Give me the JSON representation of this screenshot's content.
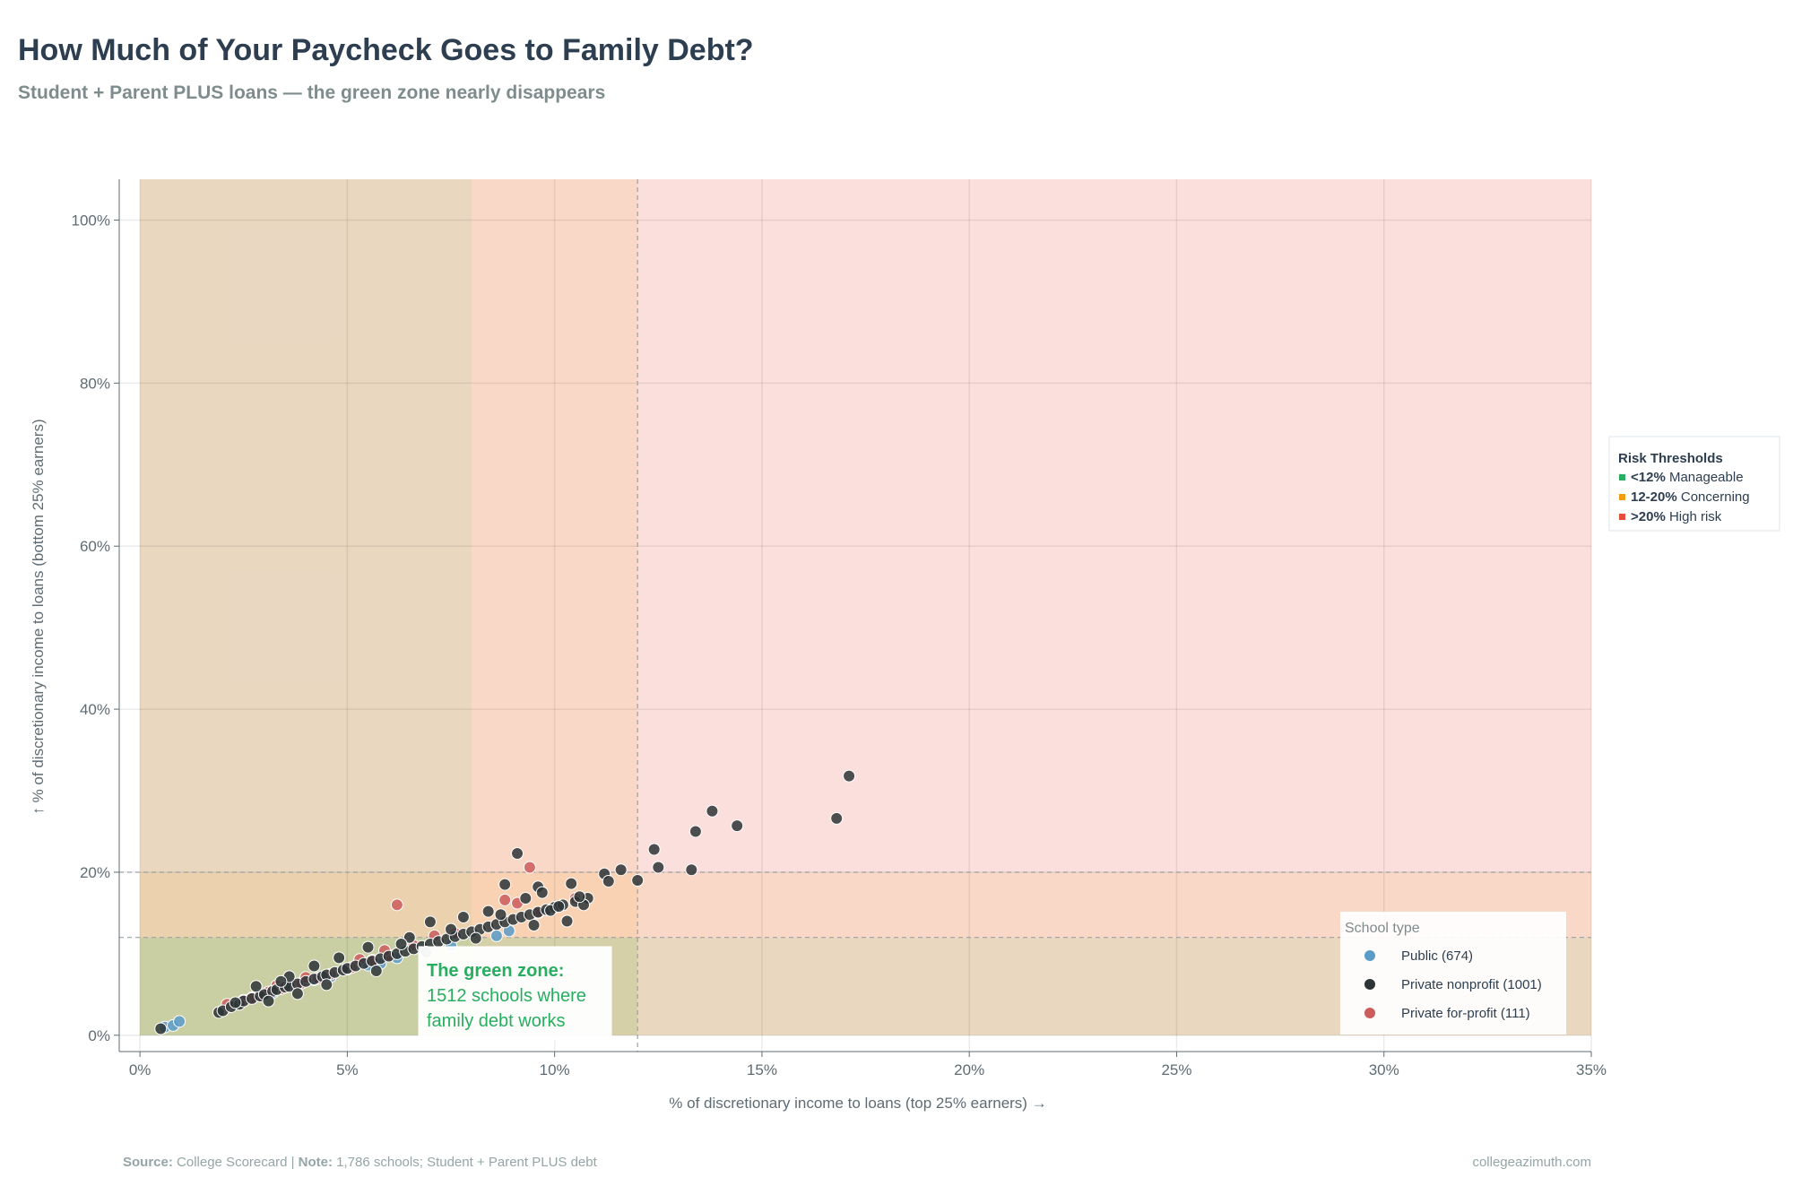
{
  "header": {
    "title": "How Much of Your Paycheck Goes to Family Debt?",
    "subtitle": "Student + Parent PLUS loans — the green zone nearly disappears"
  },
  "footer": {
    "source_label": "Source:",
    "source_text": " College Scorecard | ",
    "note_label": "Note:",
    "note_text": " 1,786 schools; Student + Parent PLUS debt",
    "site": "collegeazimuth.com"
  },
  "annotation": {
    "title": "The green zone:",
    "line1": "1512 schools where",
    "line2": "family debt works"
  },
  "thresholds_legend": {
    "title": "Risk Thresholds",
    "items": [
      {
        "bold": "<12%",
        "text": " Manageable",
        "color": "#27ae60"
      },
      {
        "bold": "12-20%",
        "text": " Concerning",
        "color": "#f39c12"
      },
      {
        "bold": ">20%",
        "text": " High risk",
        "color": "#e74c3c"
      }
    ]
  },
  "colors": {
    "zone_green": "#2ecc71",
    "zone_orange": "#f39c12",
    "zone_red": "#e74c3c",
    "annotation_green": "#27ae60",
    "title": "#2c3e50",
    "subtitle": "#7f8c8d"
  },
  "chart_data": {
    "type": "scatter",
    "xlabel": "% of discretionary income to loans (top 25% earners) →",
    "ylabel": "↑ % of discretionary income to loans (bottom 25% earners)",
    "xlim": [
      -0.5,
      35
    ],
    "ylim": [
      -2,
      105
    ],
    "x_ticks": [
      0,
      5,
      10,
      15,
      20,
      25,
      30,
      35
    ],
    "x_tick_labels": [
      "0%",
      "5%",
      "10%",
      "15%",
      "20%",
      "25%",
      "30%",
      "35%"
    ],
    "y_ticks": [
      0,
      20,
      40,
      60,
      80,
      100
    ],
    "y_tick_labels": [
      "0%",
      "20%",
      "40%",
      "60%",
      "80%",
      "100%"
    ],
    "grid": true,
    "threshold_lines": {
      "x": 12,
      "y": [
        12,
        20
      ]
    },
    "zones": [
      {
        "name": "manageable",
        "x": [
          0,
          8
        ],
        "y": [
          0,
          12
        ]
      },
      {
        "name": "concerning",
        "x": [
          8,
          12
        ],
        "y": [
          12,
          20
        ]
      },
      {
        "name": "high-risk",
        "x": [
          12,
          35
        ],
        "y": [
          20,
          105
        ]
      }
    ],
    "legend_title": "School type",
    "legend_position": "bottom-right",
    "series": [
      {
        "name": "Public (674)",
        "color": "#5b9bc8",
        "points": [
          [
            0.6,
            1.0
          ],
          [
            0.8,
            1.2
          ],
          [
            0.95,
            1.7
          ],
          [
            4.2,
            6.8
          ],
          [
            4.6,
            7.2
          ],
          [
            5.0,
            8.1
          ],
          [
            5.5,
            8.6
          ],
          [
            6.2,
            9.5
          ],
          [
            7.5,
            11.0
          ],
          [
            8.6,
            12.2
          ],
          [
            8.9,
            12.8
          ],
          [
            3.2,
            5.2
          ],
          [
            5.8,
            8.8
          ]
        ]
      },
      {
        "name": "Private nonprofit (1001)",
        "color": "#2d3436",
        "points": [
          [
            0.5,
            0.8
          ],
          [
            1.9,
            2.8
          ],
          [
            2.0,
            3.0
          ],
          [
            2.2,
            3.5
          ],
          [
            2.4,
            3.8
          ],
          [
            2.5,
            4.2
          ],
          [
            2.7,
            4.5
          ],
          [
            2.9,
            4.8
          ],
          [
            3.0,
            5.0
          ],
          [
            3.2,
            5.4
          ],
          [
            3.3,
            5.6
          ],
          [
            3.5,
            5.9
          ],
          [
            3.6,
            6.0
          ],
          [
            3.8,
            6.3
          ],
          [
            4.0,
            6.6
          ],
          [
            4.2,
            6.9
          ],
          [
            4.4,
            7.2
          ],
          [
            4.5,
            7.4
          ],
          [
            4.7,
            7.7
          ],
          [
            4.9,
            8.0
          ],
          [
            5.0,
            8.2
          ],
          [
            5.2,
            8.5
          ],
          [
            5.4,
            8.8
          ],
          [
            5.6,
            9.1
          ],
          [
            5.8,
            9.4
          ],
          [
            6.0,
            9.7
          ],
          [
            6.2,
            10.0
          ],
          [
            6.4,
            10.3
          ],
          [
            6.6,
            10.6
          ],
          [
            6.8,
            10.9
          ],
          [
            7.0,
            11.2
          ],
          [
            7.2,
            11.5
          ],
          [
            7.4,
            11.8
          ],
          [
            7.6,
            12.1
          ],
          [
            7.8,
            12.4
          ],
          [
            8.0,
            12.7
          ],
          [
            8.2,
            13.0
          ],
          [
            8.4,
            13.3
          ],
          [
            8.6,
            13.6
          ],
          [
            8.8,
            13.9
          ],
          [
            9.0,
            14.2
          ],
          [
            9.2,
            14.5
          ],
          [
            9.4,
            14.8
          ],
          [
            9.6,
            15.1
          ],
          [
            9.8,
            15.4
          ],
          [
            10.0,
            15.7
          ],
          [
            10.2,
            16.0
          ],
          [
            10.5,
            16.4
          ],
          [
            10.8,
            16.8
          ],
          [
            11.2,
            19.8
          ],
          [
            11.6,
            20.3
          ],
          [
            12.0,
            19.0
          ],
          [
            11.3,
            18.9
          ],
          [
            12.4,
            22.8
          ],
          [
            12.5,
            20.6
          ],
          [
            13.3,
            20.3
          ],
          [
            13.4,
            25.0
          ],
          [
            13.8,
            27.5
          ],
          [
            14.4,
            25.7
          ],
          [
            16.8,
            26.6
          ],
          [
            17.1,
            31.8
          ],
          [
            9.1,
            22.3
          ],
          [
            8.8,
            18.5
          ],
          [
            9.6,
            18.2
          ],
          [
            10.4,
            18.6
          ],
          [
            10.3,
            14.0
          ],
          [
            10.7,
            16.0
          ],
          [
            9.9,
            15.3
          ],
          [
            9.3,
            16.8
          ],
          [
            7.0,
            13.9
          ],
          [
            7.8,
            14.5
          ],
          [
            6.5,
            12.0
          ],
          [
            5.5,
            10.8
          ],
          [
            4.8,
            9.5
          ],
          [
            4.2,
            8.5
          ],
          [
            3.6,
            7.2
          ],
          [
            2.8,
            6.0
          ],
          [
            3.1,
            4.2
          ],
          [
            3.8,
            5.1
          ],
          [
            4.5,
            6.2
          ],
          [
            5.7,
            7.9
          ],
          [
            6.9,
            10.2
          ],
          [
            8.1,
            11.9
          ],
          [
            8.7,
            14.8
          ],
          [
            9.5,
            13.5
          ],
          [
            2.3,
            4.0
          ],
          [
            3.4,
            6.6
          ],
          [
            6.3,
            11.2
          ],
          [
            7.5,
            13.0
          ],
          [
            8.4,
            15.2
          ],
          [
            9.7,
            17.5
          ],
          [
            10.1,
            15.8
          ],
          [
            10.6,
            17.0
          ]
        ]
      },
      {
        "name": "Private for-profit (111)",
        "color": "#cd5c5c",
        "points": [
          [
            2.1,
            3.8
          ],
          [
            2.5,
            4.3
          ],
          [
            2.9,
            4.9
          ],
          [
            3.1,
            5.3
          ],
          [
            3.4,
            5.7
          ],
          [
            3.7,
            6.1
          ],
          [
            3.9,
            6.4
          ],
          [
            4.3,
            7.0
          ],
          [
            4.6,
            7.5
          ],
          [
            5.1,
            8.3
          ],
          [
            5.6,
            9.2
          ],
          [
            6.0,
            9.8
          ],
          [
            6.6,
            11.0
          ],
          [
            6.2,
            16.0
          ],
          [
            7.1,
            12.2
          ],
          [
            8.8,
            16.6
          ],
          [
            9.1,
            16.2
          ],
          [
            9.4,
            20.6
          ],
          [
            9.6,
            15.0
          ],
          [
            10.5,
            16.8
          ],
          [
            5.9,
            10.4
          ],
          [
            4.0,
            7.1
          ],
          [
            3.3,
            6.1
          ],
          [
            2.7,
            4.6
          ],
          [
            5.3,
            9.3
          ],
          [
            7.6,
            12.5
          ]
        ]
      }
    ]
  }
}
